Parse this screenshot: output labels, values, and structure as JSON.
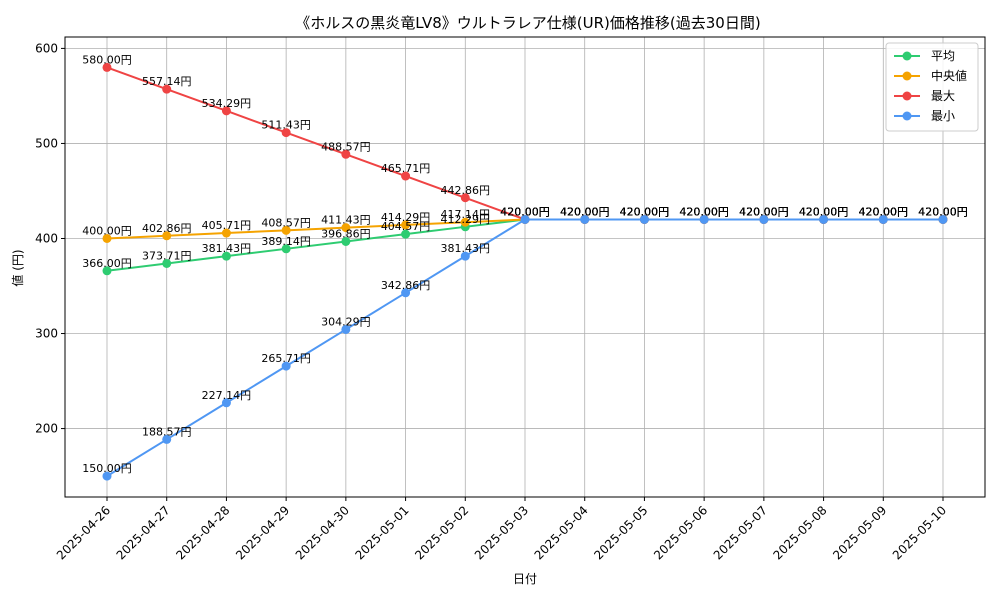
{
  "chart_data": {
    "type": "line",
    "title": "《ホルスの黒炎竜LV8》ウルトラレア仕様(UR)価格推移(過去30日間)",
    "xlabel": "日付",
    "ylabel": "値 (円)",
    "ylim": [
      128,
      612
    ],
    "yticks": [
      200,
      300,
      400,
      500,
      600
    ],
    "grid": true,
    "legend_position": "top-right",
    "categories": [
      "2025-04-26",
      "2025-04-27",
      "2025-04-28",
      "2025-04-29",
      "2025-04-30",
      "2025-05-01",
      "2025-05-02",
      "2025-05-03",
      "2025-05-04",
      "2025-05-05",
      "2025-05-06",
      "2025-05-07",
      "2025-05-08",
      "2025-05-09",
      "2025-05-10"
    ],
    "series": [
      {
        "name": "平均",
        "color": "#2ecc71",
        "values": [
          366.0,
          373.71,
          381.43,
          389.14,
          396.86,
          404.57,
          412.29,
          420.0,
          420.0,
          420.0,
          420.0,
          420.0,
          420.0,
          420.0,
          420.0
        ]
      },
      {
        "name": "中央値",
        "color": "#f5a300",
        "values": [
          400.0,
          402.86,
          405.71,
          408.57,
          411.43,
          414.29,
          417.14,
          420.0,
          420.0,
          420.0,
          420.0,
          420.0,
          420.0,
          420.0,
          420.0
        ]
      },
      {
        "name": "最大",
        "color": "#ef4444",
        "values": [
          580.0,
          557.14,
          534.29,
          511.43,
          488.57,
          465.71,
          442.86,
          420.0,
          420.0,
          420.0,
          420.0,
          420.0,
          420.0,
          420.0,
          420.0
        ]
      },
      {
        "name": "最小",
        "color": "#4f97f3",
        "values": [
          150.0,
          188.57,
          227.14,
          265.71,
          304.29,
          342.86,
          381.43,
          420.0,
          420.0,
          420.0,
          420.0,
          420.0,
          420.0,
          420.0,
          420.0
        ]
      }
    ],
    "value_suffix": "円"
  }
}
